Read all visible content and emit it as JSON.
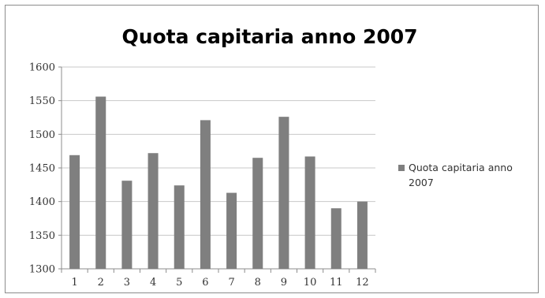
{
  "chart_data": {
    "type": "bar",
    "title": "Quota capitaria anno 2007",
    "xlabel": "",
    "ylabel": "",
    "categories": [
      "1",
      "2",
      "3",
      "4",
      "5",
      "6",
      "7",
      "8",
      "9",
      "10",
      "11",
      "12"
    ],
    "series": [
      {
        "name": "Quota capitaria anno 2007",
        "values": [
          1469,
          1556,
          1431,
          1472,
          1424,
          1521,
          1413,
          1465,
          1526,
          1467,
          1390,
          1400
        ],
        "color": "#7f7f7f"
      }
    ],
    "ylim": [
      1300,
      1600
    ],
    "yticks": [
      1300,
      1350,
      1400,
      1450,
      1500,
      1550,
      1600
    ],
    "grid": true,
    "legend_position": "right",
    "legend_lines": [
      "Quota capitaria anno",
      "2007"
    ]
  }
}
